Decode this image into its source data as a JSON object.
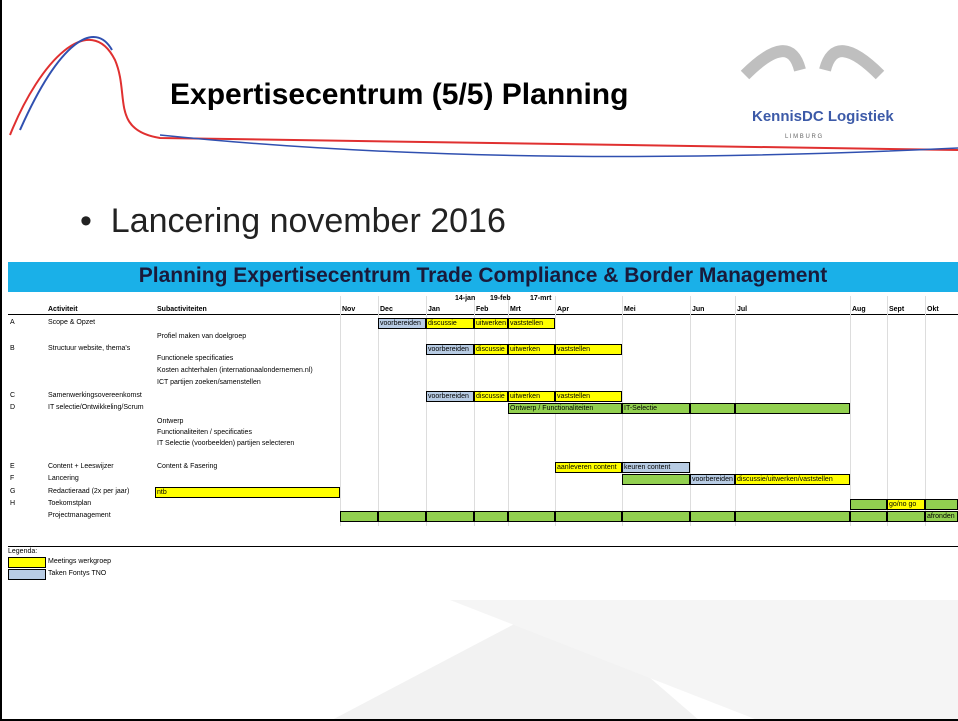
{
  "header": {
    "title": "Expertisecentrum (5/5) Planning",
    "logo": "KennisDC Logistiek",
    "logo_sub": "L I M B U R G"
  },
  "bullet": "Lancering november 2016",
  "sheet": {
    "title": "Planning Expertisecentrum Trade Compliance & Border Management",
    "dates": [
      "14-jan",
      "19-feb",
      "17-mrt"
    ],
    "col_activity": "Activiteit",
    "col_sub": "Subactiviteiten",
    "months": [
      "Nov",
      "Dec",
      "Jan",
      "Feb",
      "Mrt",
      "Apr",
      "Mei",
      "Jun",
      "Jul",
      "Aug",
      "Sept",
      "Okt"
    ],
    "rows": [
      {
        "code": "A",
        "activity": "Scope & Opzet",
        "bars": [
          {
            "label": "voorbereiden",
            "color": "#b8cce4"
          },
          {
            "label": "discussie",
            "color": "#ffff00"
          },
          {
            "label": "uitwerken",
            "color": "#ffff00"
          },
          {
            "label": "vaststellen",
            "color": "#ffff00"
          }
        ]
      },
      {
        "sub": "Profiel maken van doelgroep"
      },
      {
        "code": "B",
        "activity": "Structuur website, thema's",
        "bars": [
          {
            "label": "voorbereiden",
            "color": "#b8cce4"
          },
          {
            "label": "discussie",
            "color": "#ffff00"
          },
          {
            "label": "uitwerken",
            "color": "#ffff00"
          },
          {
            "label": "vaststellen",
            "color": "#ffff00"
          }
        ]
      },
      {
        "sub": "Functionele specificaties"
      },
      {
        "sub": "Kosten achterhalen (internationaalondernemen.nl)"
      },
      {
        "sub": "ICT partijen zoeken/samenstellen"
      },
      {
        "code": "C",
        "activity": "Samenwerkingsovereenkomst",
        "bars": [
          {
            "label": "voorbereiden",
            "color": "#b8cce4"
          },
          {
            "label": "discussie",
            "color": "#ffff00"
          },
          {
            "label": "uitwerken",
            "color": "#ffff00"
          },
          {
            "label": "vaststellen",
            "color": "#ffff00"
          }
        ]
      },
      {
        "code": "D",
        "activity": "IT selectie/Ontwikkeling/Scrum",
        "bars": [
          {
            "label": "Ontwerp / Functionaliteiten",
            "color": "#92d050"
          },
          {
            "label": "IT-Selectie",
            "color": "#92d050"
          },
          {
            "color": "#92d050"
          },
          {
            "color": "#92d050"
          }
        ]
      },
      {
        "sub": "Ontwerp"
      },
      {
        "sub": "Functionaliteiten / specificaties"
      },
      {
        "sub": "IT Selectie (voorbeelden) partijen selecteren"
      },
      {
        "code": "E",
        "activity": "Content + Leeswijzer",
        "sub": "Content & Fasering",
        "bars": [
          {
            "label": "aanleveren content",
            "color": "#ffff00"
          },
          {
            "label": "keuren content",
            "color": "#b8cce4"
          }
        ]
      },
      {
        "code": "F",
        "activity": "Lancering",
        "bars": [
          {
            "color": "#92d050"
          },
          {
            "label": "voorbereiden",
            "color": "#b8cce4"
          },
          {
            "label": "discussie/uitwerken/vaststellen",
            "color": "#ffff00"
          }
        ]
      },
      {
        "code": "G",
        "activity": "Redactieraad (2x per jaar)",
        "bars": [
          {
            "label": "ntb",
            "color": "#ffff00"
          }
        ]
      },
      {
        "code": "H",
        "activity": "Toekomstplan",
        "bars": [
          {
            "color": "#92d050"
          },
          {
            "label": "go/no go",
            "color": "#ffff00"
          },
          {
            "color": "#92d050"
          }
        ]
      },
      {
        "activity": "Projectmanagement",
        "bars": [
          {
            "color": "#92d050"
          },
          {
            "color": "#92d050"
          },
          {
            "color": "#92d050"
          },
          {
            "color": "#92d050"
          },
          {
            "color": "#92d050"
          },
          {
            "color": "#92d050"
          },
          {
            "color": "#92d050"
          },
          {
            "color": "#92d050"
          },
          {
            "color": "#92d050"
          },
          {
            "color": "#92d050"
          },
          {
            "color": "#92d050"
          },
          {
            "label": "afronden",
            "color": "#92d050"
          }
        ]
      }
    ],
    "legend": {
      "title": "Legenda:",
      "items": [
        {
          "label": "Meetings werkgroep",
          "color": "#ffff00"
        },
        {
          "label": "Taken Fontys TNO",
          "color": "#b8cce4"
        }
      ]
    }
  }
}
